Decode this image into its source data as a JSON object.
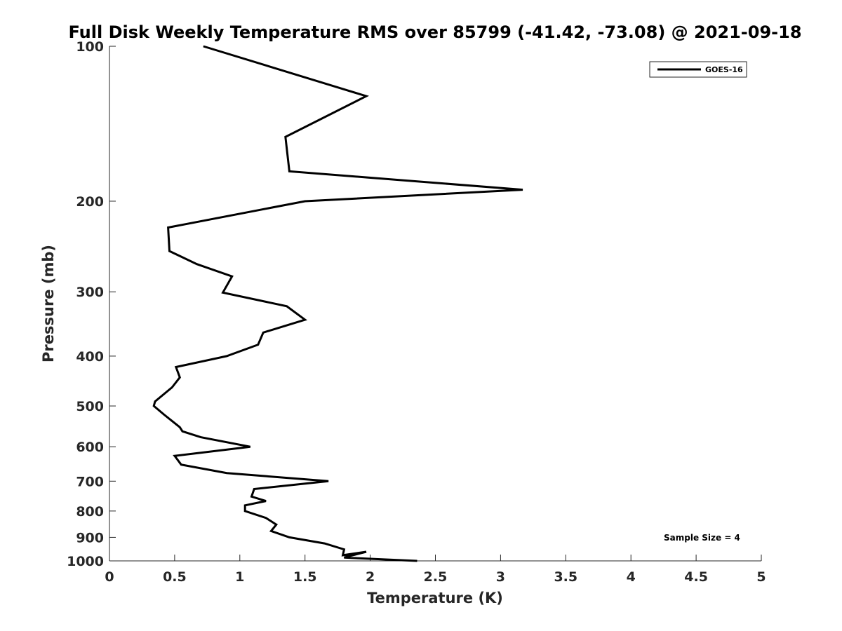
{
  "chart_data": {
    "type": "line",
    "title": "Full Disk Weekly Temperature RMS over 85799 (-41.42, -73.08) @ 2021-09-18",
    "xlabel": "Temperature (K)",
    "ylabel": "Pressure (mb)",
    "xlim": [
      0,
      5
    ],
    "ylim": [
      100,
      1000
    ],
    "yscale": "log",
    "y_reversed": true,
    "xticks": [
      0,
      0.5,
      1,
      1.5,
      2,
      2.5,
      3,
      3.5,
      4,
      4.5,
      5
    ],
    "xtick_labels": [
      "0",
      "0.5",
      "1",
      "1.5",
      "2",
      "2.5",
      "3",
      "3.5",
      "4",
      "4.5",
      "5"
    ],
    "yticks": [
      100,
      200,
      300,
      400,
      500,
      600,
      700,
      800,
      900,
      1000
    ],
    "ytick_labels": [
      "100",
      "200",
      "300",
      "400",
      "500",
      "600",
      "700",
      "800",
      "900",
      "1000"
    ],
    "grid": false,
    "legend_position": "top-right",
    "annotation": "Sample Size = 4",
    "series": [
      {
        "name": "GOES-16",
        "color": "#000000",
        "x": [
          0.72,
          1.97,
          1.35,
          1.38,
          3.17,
          1.5,
          0.45,
          0.46,
          0.67,
          0.94,
          0.87,
          1.36,
          1.5,
          1.18,
          1.14,
          0.9,
          0.51,
          0.54,
          0.48,
          0.35,
          0.34,
          0.42,
          0.54,
          0.56,
          0.7,
          1.08,
          0.5,
          0.55,
          0.9,
          1.68,
          1.11,
          1.09,
          1.2,
          1.04,
          1.04,
          1.2,
          1.28,
          1.24,
          1.38,
          1.65,
          1.8,
          1.79,
          1.97,
          1.8,
          1.97,
          2.36
        ],
        "y": [
          100,
          125,
          150,
          175,
          190,
          200,
          225,
          250,
          265,
          280,
          301,
          320,
          340,
          360,
          380,
          400,
          420,
          440,
          460,
          490,
          500,
          520,
          550,
          560,
          575,
          600,
          625,
          650,
          675,
          700,
          725,
          750,
          765,
          780,
          800,
          825,
          850,
          875,
          900,
          925,
          950,
          975,
          960,
          985,
          990,
          1000
        ]
      }
    ]
  }
}
